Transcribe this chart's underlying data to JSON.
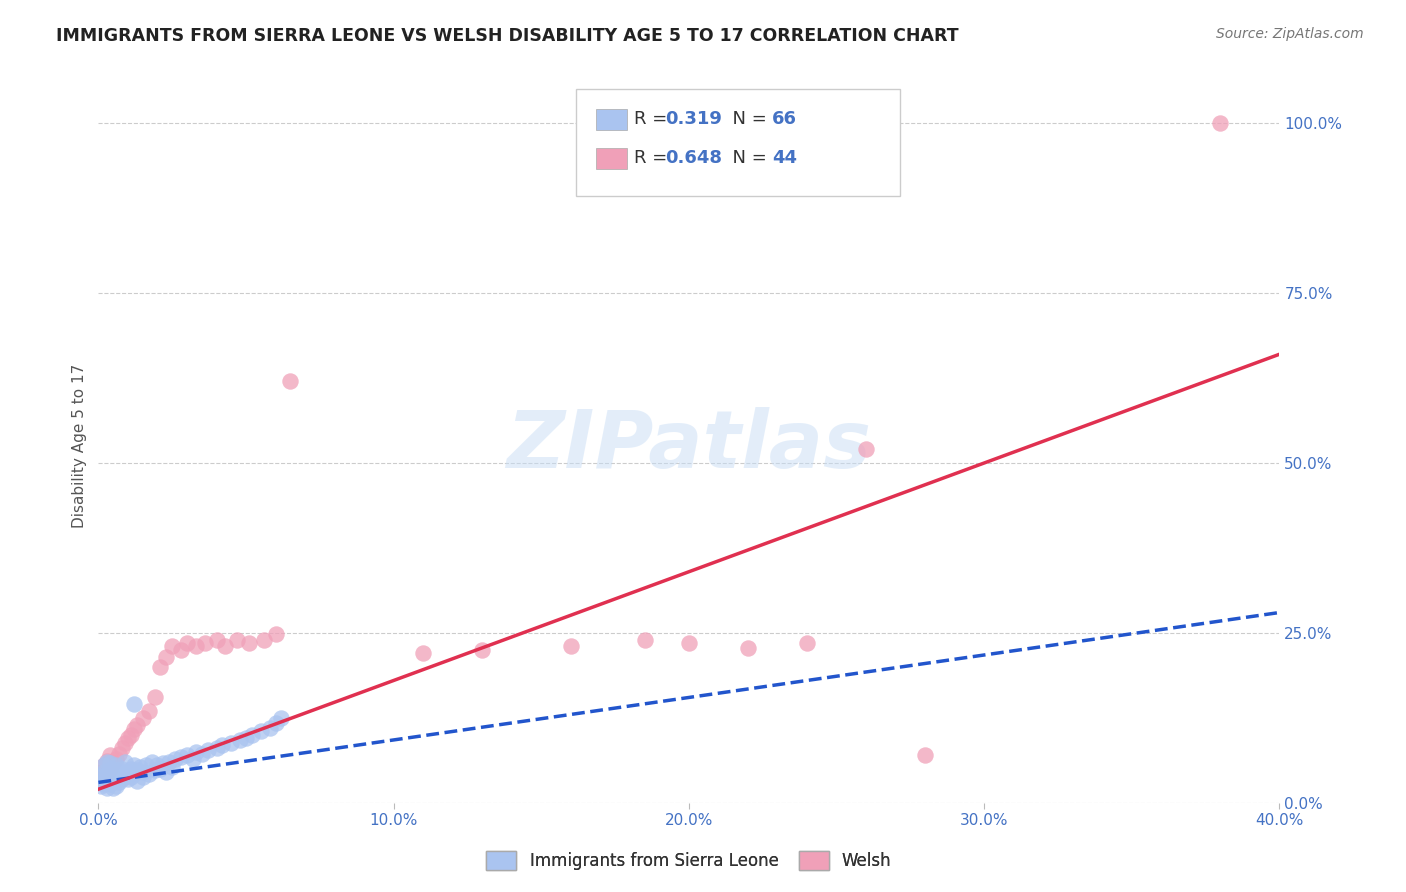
{
  "title": "IMMIGRANTS FROM SIERRA LEONE VS WELSH DISABILITY AGE 5 TO 17 CORRELATION CHART",
  "source": "Source: ZipAtlas.com",
  "ylabel": "Disability Age 5 to 17",
  "xlim": [
    0.0,
    0.4
  ],
  "ylim": [
    0.0,
    1.05
  ],
  "xticks": [
    0.0,
    0.1,
    0.2,
    0.3,
    0.4
  ],
  "xticklabels": [
    "0.0%",
    "10.0%",
    "20.0%",
    "30.0%",
    "40.0%"
  ],
  "yticks_right": [
    0.0,
    0.25,
    0.5,
    0.75,
    1.0
  ],
  "yticklabels_right": [
    "0.0%",
    "25.0%",
    "50.0%",
    "75.0%",
    "100.0%"
  ],
  "watermark": "ZIPatlas",
  "blue_scatter_color": "#aac4f0",
  "pink_scatter_color": "#f0a0b8",
  "blue_line_color": "#2255cc",
  "pink_line_color": "#e03050",
  "blue_legend_color": "#aac4f0",
  "pink_legend_color": "#f0a0b8",
  "blue_scatter_x": [
    0.001,
    0.001,
    0.001,
    0.002,
    0.002,
    0.002,
    0.002,
    0.003,
    0.003,
    0.003,
    0.003,
    0.004,
    0.004,
    0.004,
    0.004,
    0.005,
    0.005,
    0.005,
    0.006,
    0.006,
    0.006,
    0.007,
    0.007,
    0.008,
    0.008,
    0.009,
    0.009,
    0.01,
    0.01,
    0.011,
    0.011,
    0.012,
    0.012,
    0.013,
    0.013,
    0.014,
    0.015,
    0.015,
    0.016,
    0.017,
    0.018,
    0.019,
    0.02,
    0.021,
    0.022,
    0.023,
    0.024,
    0.025,
    0.026,
    0.028,
    0.03,
    0.032,
    0.033,
    0.035,
    0.037,
    0.04,
    0.042,
    0.045,
    0.048,
    0.05,
    0.052,
    0.055,
    0.058,
    0.06,
    0.062,
    0.012
  ],
  "blue_scatter_y": [
    0.03,
    0.04,
    0.025,
    0.035,
    0.045,
    0.028,
    0.055,
    0.032,
    0.042,
    0.022,
    0.06,
    0.038,
    0.048,
    0.028,
    0.058,
    0.035,
    0.05,
    0.022,
    0.04,
    0.055,
    0.025,
    0.045,
    0.03,
    0.05,
    0.035,
    0.04,
    0.06,
    0.045,
    0.035,
    0.05,
    0.038,
    0.055,
    0.042,
    0.048,
    0.032,
    0.052,
    0.045,
    0.038,
    0.055,
    0.042,
    0.06,
    0.048,
    0.055,
    0.05,
    0.058,
    0.045,
    0.06,
    0.052,
    0.065,
    0.068,
    0.07,
    0.065,
    0.075,
    0.072,
    0.078,
    0.08,
    0.085,
    0.088,
    0.092,
    0.095,
    0.1,
    0.105,
    0.11,
    0.118,
    0.125,
    0.145
  ],
  "pink_scatter_x": [
    0.001,
    0.001,
    0.002,
    0.002,
    0.003,
    0.003,
    0.004,
    0.004,
    0.005,
    0.006,
    0.007,
    0.008,
    0.009,
    0.01,
    0.011,
    0.012,
    0.013,
    0.015,
    0.017,
    0.019,
    0.021,
    0.023,
    0.025,
    0.028,
    0.03,
    0.033,
    0.036,
    0.04,
    0.043,
    0.047,
    0.051,
    0.056,
    0.06,
    0.065,
    0.11,
    0.13,
    0.16,
    0.185,
    0.2,
    0.22,
    0.24,
    0.26,
    0.28,
    0.38
  ],
  "pink_scatter_y": [
    0.03,
    0.045,
    0.038,
    0.055,
    0.042,
    0.062,
    0.05,
    0.07,
    0.058,
    0.065,
    0.072,
    0.08,
    0.088,
    0.095,
    0.1,
    0.108,
    0.115,
    0.125,
    0.135,
    0.155,
    0.2,
    0.215,
    0.23,
    0.225,
    0.235,
    0.23,
    0.235,
    0.24,
    0.23,
    0.24,
    0.235,
    0.24,
    0.248,
    0.62,
    0.22,
    0.225,
    0.23,
    0.24,
    0.235,
    0.228,
    0.235,
    0.52,
    0.07,
    1.0
  ],
  "blue_line_x": [
    0.0,
    0.4
  ],
  "blue_line_y": [
    0.03,
    0.28
  ],
  "pink_line_x": [
    0.0,
    0.4
  ],
  "pink_line_y": [
    0.02,
    0.66
  ],
  "grid_color": "#cccccc",
  "background_color": "#ffffff",
  "tick_color": "#4472c4",
  "ylabel_color": "#555555"
}
